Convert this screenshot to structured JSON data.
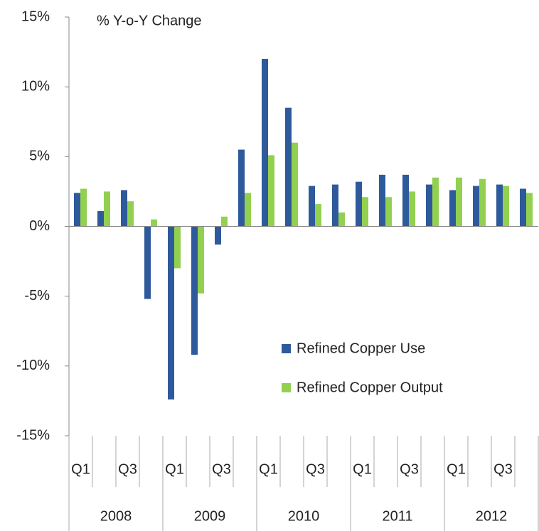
{
  "chart_data": {
    "type": "bar",
    "annotation": "% Y-o-Y Change",
    "categories": [
      "Q1",
      null,
      "Q3",
      null,
      "Q1",
      null,
      "Q3",
      null,
      "Q1",
      null,
      "Q3",
      null,
      "Q1",
      null,
      "Q3",
      null,
      "Q1",
      null,
      "Q3",
      null
    ],
    "groups": [
      "2008",
      "2009",
      "2010",
      "2011",
      "2012"
    ],
    "series": [
      {
        "name": "Refined Copper Use",
        "color": "#2e5a9c",
        "values": [
          2.4,
          1.1,
          2.6,
          -5.2,
          -12.4,
          -9.2,
          -1.3,
          5.5,
          12.0,
          8.5,
          2.9,
          3.0,
          3.2,
          3.7,
          3.7,
          3.0,
          2.6,
          2.9,
          3.0,
          2.7
        ]
      },
      {
        "name": "Refined Copper Output",
        "color": "#92d050",
        "values": [
          2.7,
          2.5,
          1.8,
          0.5,
          -3.0,
          -4.8,
          0.7,
          2.4,
          5.1,
          6.0,
          1.6,
          1.0,
          2.1,
          2.1,
          2.5,
          3.5,
          3.5,
          3.4,
          2.9,
          2.4
        ]
      }
    ],
    "ylim": [
      -15,
      15
    ],
    "yticks": [
      {
        "value": -15,
        "label": "-15%"
      },
      {
        "value": -10,
        "label": "-10%"
      },
      {
        "value": -5,
        "label": "-5%"
      },
      {
        "value": 0,
        "label": "0%"
      },
      {
        "value": 5,
        "label": "5%"
      },
      {
        "value": 10,
        "label": "10%"
      },
      {
        "value": 15,
        "label": "15%"
      }
    ]
  }
}
